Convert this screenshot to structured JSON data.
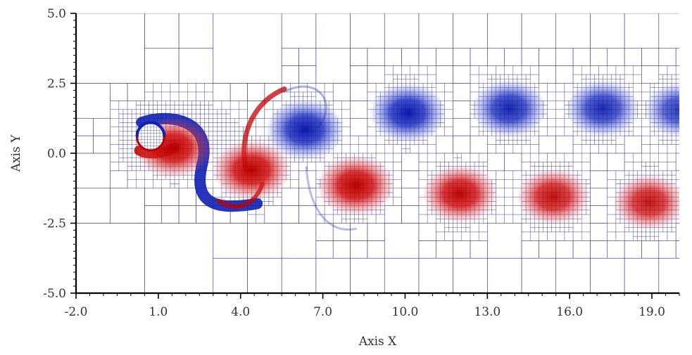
{
  "chart_data": {
    "type": "heatmap",
    "title": "",
    "xlabel": "Axis X",
    "ylabel": "Axis Y",
    "xlim": [
      -2.0,
      20.0
    ],
    "ylim": [
      -5.0,
      5.0
    ],
    "x_ticks": [
      "-2.0",
      "1.0",
      "4.0",
      "7.0",
      "10.0",
      "13.0",
      "16.0",
      "19.0"
    ],
    "y_ticks": [
      "5.0",
      "2.5",
      "0.0",
      "-2.5",
      "-5.0"
    ],
    "x_tick_values": [
      -2,
      1,
      4,
      7,
      10,
      13,
      16,
      19
    ],
    "y_tick_values": [
      5,
      2.5,
      0,
      -2.5,
      -5
    ],
    "grid": "adaptive mesh refinement",
    "colormap": {
      "negative": "#c00000",
      "positive": "#1020b0",
      "zero": "#ffffff",
      "mesh_line": "#2a2a80"
    },
    "obstacle": {
      "shape": "circle",
      "center": [
        0.72,
        0.6
      ],
      "radius": 0.5
    },
    "vortices": [
      {
        "sign": "positive",
        "x": 6.35,
        "y": 0.85,
        "strength": 1.0
      },
      {
        "sign": "negative",
        "x": 8.2,
        "y": -1.15,
        "strength": 1.0
      },
      {
        "sign": "positive",
        "x": 10.1,
        "y": 1.45,
        "strength": 0.9
      },
      {
        "sign": "negative",
        "x": 12.0,
        "y": -1.45,
        "strength": 0.85
      },
      {
        "sign": "positive",
        "x": 13.8,
        "y": 1.6,
        "strength": 0.8
      },
      {
        "sign": "negative",
        "x": 15.4,
        "y": -1.55,
        "strength": 0.75
      },
      {
        "sign": "positive",
        "x": 17.2,
        "y": 1.6,
        "strength": 0.75
      },
      {
        "sign": "negative",
        "x": 18.9,
        "y": -1.75,
        "strength": 0.7
      },
      {
        "sign": "positive",
        "x": 20.0,
        "y": 1.55,
        "strength": 0.6
      },
      {
        "sign": "negative",
        "x": 1.55,
        "y": 0.2,
        "strength": 1.0
      },
      {
        "sign": "negative",
        "x": 4.4,
        "y": -0.6,
        "strength": 1.0
      }
    ]
  }
}
